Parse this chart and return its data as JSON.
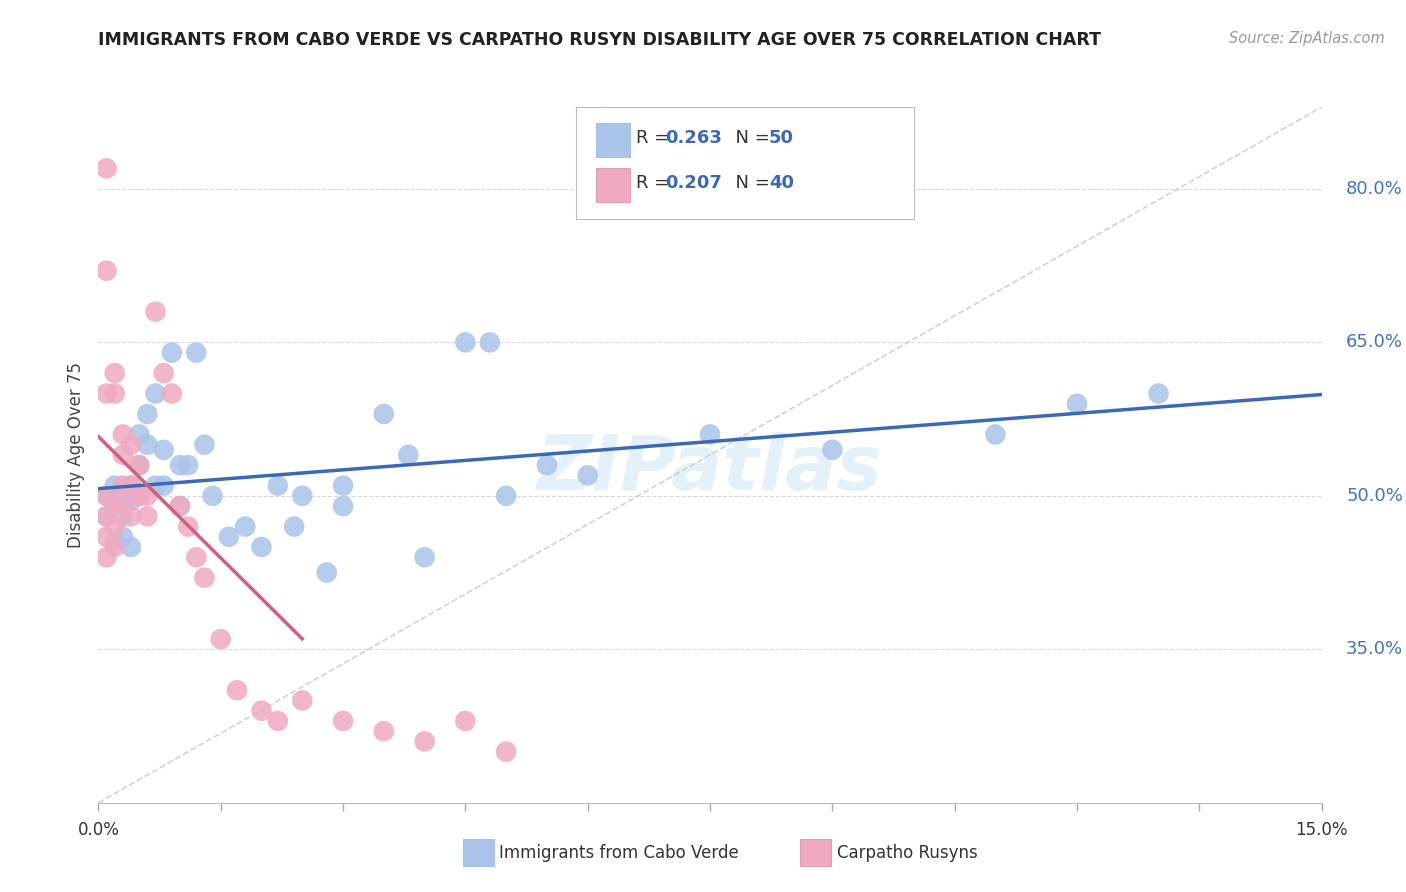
{
  "title": "IMMIGRANTS FROM CABO VERDE VS CARPATHO RUSYN DISABILITY AGE OVER 75 CORRELATION CHART",
  "source": "Source: ZipAtlas.com",
  "ylabel": "Disability Age Over 75",
  "ytick_labels": [
    "80.0%",
    "65.0%",
    "50.0%",
    "35.0%"
  ],
  "ytick_values": [
    0.8,
    0.65,
    0.5,
    0.35
  ],
  "xlim": [
    0.0,
    0.15
  ],
  "ylim": [
    0.2,
    0.88
  ],
  "legend_blue_r": "0.263",
  "legend_blue_n": "50",
  "legend_pink_r": "0.207",
  "legend_pink_n": "40",
  "legend_label_blue": "Immigrants from Cabo Verde",
  "legend_label_pink": "Carpatho Rusyns",
  "blue_color": "#aac4ea",
  "pink_color": "#f0aac0",
  "trend_blue": "#3a6ab5",
  "trend_pink": "#d06080",
  "trend_dashed_color": "#c8c8c8",
  "watermark": "ZIPatlas",
  "blue_x": [
    0.001,
    0.001,
    0.002,
    0.002,
    0.002,
    0.003,
    0.003,
    0.003,
    0.003,
    0.004,
    0.004,
    0.004,
    0.005,
    0.005,
    0.005,
    0.006,
    0.006,
    0.007,
    0.007,
    0.008,
    0.008,
    0.009,
    0.01,
    0.01,
    0.011,
    0.012,
    0.013,
    0.014,
    0.016,
    0.018,
    0.02,
    0.022,
    0.024,
    0.025,
    0.028,
    0.03,
    0.03,
    0.035,
    0.038,
    0.04,
    0.045,
    0.048,
    0.05,
    0.055,
    0.06,
    0.075,
    0.09,
    0.11,
    0.12,
    0.13
  ],
  "blue_y": [
    0.5,
    0.48,
    0.51,
    0.49,
    0.455,
    0.5,
    0.49,
    0.48,
    0.46,
    0.51,
    0.495,
    0.45,
    0.56,
    0.53,
    0.5,
    0.58,
    0.55,
    0.6,
    0.51,
    0.545,
    0.51,
    0.64,
    0.53,
    0.49,
    0.53,
    0.64,
    0.55,
    0.5,
    0.46,
    0.47,
    0.45,
    0.51,
    0.47,
    0.5,
    0.425,
    0.51,
    0.49,
    0.58,
    0.54,
    0.44,
    0.65,
    0.65,
    0.5,
    0.53,
    0.52,
    0.56,
    0.545,
    0.56,
    0.59,
    0.6
  ],
  "pink_x": [
    0.001,
    0.001,
    0.001,
    0.001,
    0.001,
    0.001,
    0.001,
    0.002,
    0.002,
    0.002,
    0.002,
    0.002,
    0.003,
    0.003,
    0.003,
    0.003,
    0.004,
    0.004,
    0.004,
    0.005,
    0.005,
    0.006,
    0.006,
    0.007,
    0.008,
    0.009,
    0.01,
    0.011,
    0.012,
    0.013,
    0.015,
    0.017,
    0.02,
    0.022,
    0.025,
    0.03,
    0.035,
    0.04,
    0.045,
    0.05
  ],
  "pink_y": [
    0.82,
    0.72,
    0.6,
    0.5,
    0.48,
    0.46,
    0.44,
    0.62,
    0.6,
    0.49,
    0.47,
    0.45,
    0.56,
    0.54,
    0.51,
    0.49,
    0.55,
    0.51,
    0.48,
    0.53,
    0.5,
    0.5,
    0.48,
    0.68,
    0.62,
    0.6,
    0.49,
    0.47,
    0.44,
    0.42,
    0.36,
    0.31,
    0.29,
    0.28,
    0.3,
    0.28,
    0.27,
    0.26,
    0.28,
    0.25
  ]
}
